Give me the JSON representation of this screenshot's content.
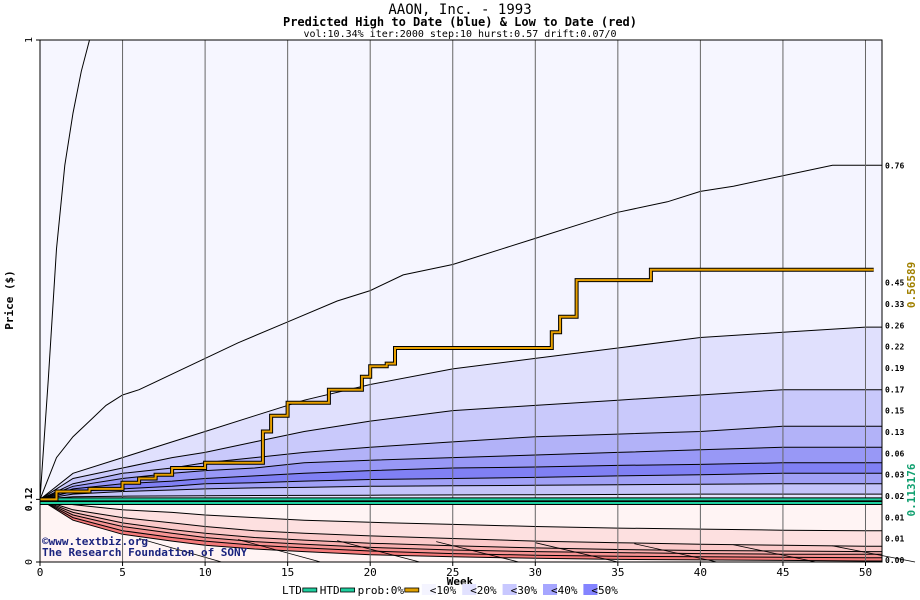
{
  "chart_data": {
    "type": "area",
    "title": "AAON, Inc. - 1993",
    "subtitle": "Predicted High to Date (blue) &  Low to Date (red)",
    "params": "vol:10.34% iter:2000 step:10 hurst:0.57 drift:0.07/0",
    "xlabel": "Week",
    "ylabel": "Price ($)",
    "xlim": [
      0,
      51
    ],
    "ylim": [
      0,
      1
    ],
    "x_ticks": [
      0,
      5,
      10,
      15,
      20,
      25,
      30,
      35,
      40,
      45,
      50
    ],
    "y_ticks": [
      0,
      0.12,
      1
    ],
    "y_tick_labels": [
      "0",
      "0.12",
      "1"
    ],
    "right_labels": [
      "0.76",
      "0.45",
      "0.33",
      "0.26",
      "0.22",
      "0.19",
      "0.17",
      "0.15",
      "0.13",
      "0.06",
      "0.03",
      "0.02",
      "0.01",
      "0.01",
      "0.00"
    ],
    "right_values": [
      0.76,
      0.45,
      0.33,
      0.26,
      0.22,
      0.19,
      0.17,
      0.15,
      0.13,
      0.06,
      0.03,
      0.02,
      0.015,
      0.008,
      0.002
    ],
    "side_value_prob": "0.56589",
    "side_value_ltd": "0.113176",
    "high_bands": [
      {
        "x": [
          0,
          1,
          2,
          3,
          4,
          5,
          6,
          8,
          10,
          12,
          15,
          18,
          20,
          22,
          25,
          28,
          30,
          33,
          35,
          38,
          40,
          42,
          45,
          48,
          50
        ],
        "y": [
          0.12,
          0.2,
          0.24,
          0.27,
          0.3,
          0.32,
          0.33,
          0.36,
          0.39,
          0.42,
          0.46,
          0.5,
          0.52,
          0.55,
          0.57,
          0.6,
          0.62,
          0.65,
          0.67,
          0.69,
          0.71,
          0.72,
          0.74,
          0.76,
          0.76
        ]
      },
      {
        "x": [
          0,
          2,
          5,
          8,
          10,
          13,
          16,
          20,
          25,
          30,
          35,
          40,
          45,
          50
        ],
        "y": [
          0.12,
          0.17,
          0.2,
          0.23,
          0.25,
          0.28,
          0.31,
          0.34,
          0.37,
          0.39,
          0.41,
          0.43,
          0.44,
          0.45
        ]
      },
      {
        "x": [
          0,
          2,
          5,
          8,
          10,
          13,
          16,
          20,
          25,
          30,
          35,
          40,
          45,
          50
        ],
        "y": [
          0.12,
          0.16,
          0.18,
          0.2,
          0.21,
          0.23,
          0.25,
          0.27,
          0.29,
          0.3,
          0.31,
          0.32,
          0.33,
          0.33
        ]
      },
      {
        "x": [
          0,
          2,
          5,
          8,
          10,
          13,
          16,
          20,
          25,
          30,
          35,
          40,
          45,
          50
        ],
        "y": [
          0.12,
          0.15,
          0.17,
          0.18,
          0.19,
          0.2,
          0.21,
          0.22,
          0.23,
          0.24,
          0.245,
          0.25,
          0.26,
          0.26
        ]
      },
      {
        "x": [
          0,
          2,
          5,
          8,
          10,
          13,
          16,
          20,
          25,
          30,
          35,
          40,
          45,
          50
        ],
        "y": [
          0.12,
          0.145,
          0.16,
          0.17,
          0.175,
          0.18,
          0.19,
          0.195,
          0.2,
          0.205,
          0.21,
          0.215,
          0.22,
          0.22
        ]
      },
      {
        "x": [
          0,
          2,
          5,
          8,
          10,
          13,
          16,
          20,
          25,
          30,
          35,
          40,
          45,
          50
        ],
        "y": [
          0.12,
          0.14,
          0.15,
          0.155,
          0.16,
          0.165,
          0.17,
          0.175,
          0.18,
          0.182,
          0.185,
          0.187,
          0.19,
          0.19
        ]
      },
      {
        "x": [
          0,
          2,
          5,
          8,
          10,
          13,
          16,
          20,
          25,
          30,
          35,
          40,
          45,
          50
        ],
        "y": [
          0.12,
          0.135,
          0.14,
          0.145,
          0.15,
          0.152,
          0.155,
          0.158,
          0.16,
          0.162,
          0.165,
          0.167,
          0.17,
          0.17
        ]
      },
      {
        "x": [
          0,
          2,
          5,
          8,
          10,
          13,
          16,
          20,
          25,
          30,
          35,
          40,
          45,
          50
        ],
        "y": [
          0.12,
          0.13,
          0.135,
          0.138,
          0.14,
          0.142,
          0.143,
          0.145,
          0.146,
          0.147,
          0.148,
          0.149,
          0.15,
          0.15
        ]
      },
      {
        "x": [
          0,
          2,
          5,
          10,
          20,
          30,
          40,
          50
        ],
        "y": [
          0.12,
          0.125,
          0.126,
          0.127,
          0.128,
          0.129,
          0.13,
          0.13
        ]
      }
    ],
    "low_bands": [
      {
        "x": [
          0,
          5,
          10,
          20,
          30,
          40,
          50
        ],
        "y": [
          0.12,
          0.117,
          0.116,
          0.116,
          0.115,
          0.115,
          0.113
        ]
      },
      {
        "x": [
          0,
          2,
          5,
          8,
          10,
          13,
          16,
          20,
          25,
          30,
          35,
          40,
          45,
          50
        ],
        "y": [
          0.12,
          0.11,
          0.1,
          0.095,
          0.09,
          0.085,
          0.08,
          0.076,
          0.072,
          0.068,
          0.065,
          0.063,
          0.061,
          0.06
        ]
      },
      {
        "x": [
          0,
          2,
          5,
          8,
          10,
          13,
          16,
          20,
          25,
          30,
          35,
          40,
          45,
          50
        ],
        "y": [
          0.12,
          0.1,
          0.085,
          0.075,
          0.068,
          0.06,
          0.055,
          0.05,
          0.045,
          0.04,
          0.037,
          0.034,
          0.032,
          0.03
        ]
      },
      {
        "x": [
          0,
          2,
          5,
          8,
          10,
          13,
          16,
          20,
          25,
          30,
          35,
          40,
          45,
          50
        ],
        "y": [
          0.12,
          0.095,
          0.075,
          0.062,
          0.055,
          0.047,
          0.042,
          0.036,
          0.031,
          0.027,
          0.024,
          0.022,
          0.021,
          0.02
        ]
      },
      {
        "x": [
          0,
          2,
          5,
          8,
          10,
          13,
          16,
          20,
          25,
          30,
          35,
          40,
          45,
          50
        ],
        "y": [
          0.12,
          0.09,
          0.068,
          0.055,
          0.047,
          0.039,
          0.034,
          0.028,
          0.023,
          0.02,
          0.018,
          0.016,
          0.015,
          0.015
        ]
      },
      {
        "x": [
          0,
          2,
          5,
          8,
          10,
          13,
          16,
          20,
          25,
          30,
          35,
          40,
          45,
          50
        ],
        "y": [
          0.12,
          0.085,
          0.06,
          0.047,
          0.04,
          0.032,
          0.027,
          0.021,
          0.016,
          0.013,
          0.011,
          0.01,
          0.009,
          0.008
        ]
      },
      {
        "x": [
          0,
          2,
          5,
          8,
          10,
          13,
          16,
          20,
          25,
          30,
          35,
          40,
          45,
          50
        ],
        "y": [
          0.12,
          0.08,
          0.053,
          0.04,
          0.032,
          0.025,
          0.02,
          0.014,
          0.01,
          0.007,
          0.005,
          0.004,
          0.003,
          0.002
        ]
      }
    ],
    "steep_high": {
      "x": [
        0,
        0.5,
        1,
        1.5,
        2,
        2.5,
        3
      ],
      "y": [
        0.12,
        0.35,
        0.6,
        0.76,
        0.86,
        0.94,
        1.0
      ]
    },
    "prob_line": {
      "x": [
        0,
        1,
        1,
        3,
        3,
        5,
        5,
        6,
        6,
        7,
        7,
        8,
        8,
        10,
        10,
        13.5,
        13.5,
        14,
        14,
        15,
        15,
        17.5,
        17.5,
        19.5,
        19.5,
        20,
        20,
        21,
        21,
        21.5,
        21.5,
        31,
        31,
        31.5,
        31.5,
        32.5,
        32.5,
        37,
        37,
        50.5
      ],
      "y": [
        0.12,
        0.12,
        0.135,
        0.135,
        0.14,
        0.14,
        0.152,
        0.152,
        0.16,
        0.16,
        0.167,
        0.167,
        0.18,
        0.18,
        0.19,
        0.19,
        0.25,
        0.25,
        0.28,
        0.28,
        0.305,
        0.305,
        0.33,
        0.33,
        0.355,
        0.355,
        0.375,
        0.375,
        0.38,
        0.38,
        0.41,
        0.41,
        0.44,
        0.44,
        0.47,
        0.47,
        0.54,
        0.54,
        0.56,
        0.56
      ]
    },
    "ltd_line": {
      "x": [
        0,
        51
      ],
      "y": [
        0.113,
        0.113
      ]
    },
    "htd_line": {
      "x": [
        0,
        51
      ],
      "y": [
        0.12,
        0.12
      ]
    },
    "legend": [
      {
        "label": "LTD",
        "swatch": "#1fcf9f",
        "kind": "line"
      },
      {
        "label": "HTD",
        "swatch": "#1fcf9f",
        "kind": "line"
      },
      {
        "label": "prob:0%",
        "swatch": "#e0a000",
        "kind": "line"
      },
      {
        "label": "<10%",
        "swatch": "#f4f4ff",
        "kind": "box"
      },
      {
        "label": "<20%",
        "swatch": "#e2e2ff",
        "kind": "box"
      },
      {
        "label": "<30%",
        "swatch": "#c8c8ff",
        "kind": "box"
      },
      {
        "label": "<40%",
        "swatch": "#a6a6ff",
        "kind": "box"
      },
      {
        "label": "<50%",
        "swatch": "#8484ff",
        "kind": "box"
      }
    ],
    "colors": {
      "blue_bands": [
        "#f4f4ff",
        "#e0e0fd",
        "#c9c9fb",
        "#b2b2f8",
        "#9898f6",
        "#8080f4",
        "#a0a0f6",
        "#c4c4fa",
        "#e4e4fd"
      ],
      "red_bands": [
        "#fff4f4",
        "#fde0e0",
        "#fbcaca",
        "#f9b0b0",
        "#f79494",
        "#f57a7a"
      ],
      "prob": "#e8a000",
      "htd": "#1fcf9f",
      "grid": "#666666",
      "side_prob": "#a08000",
      "side_ltd": "#10a070"
    },
    "watermark": [
      "©www.textbiz.org",
      "The Research Foundation of SONY"
    ]
  }
}
